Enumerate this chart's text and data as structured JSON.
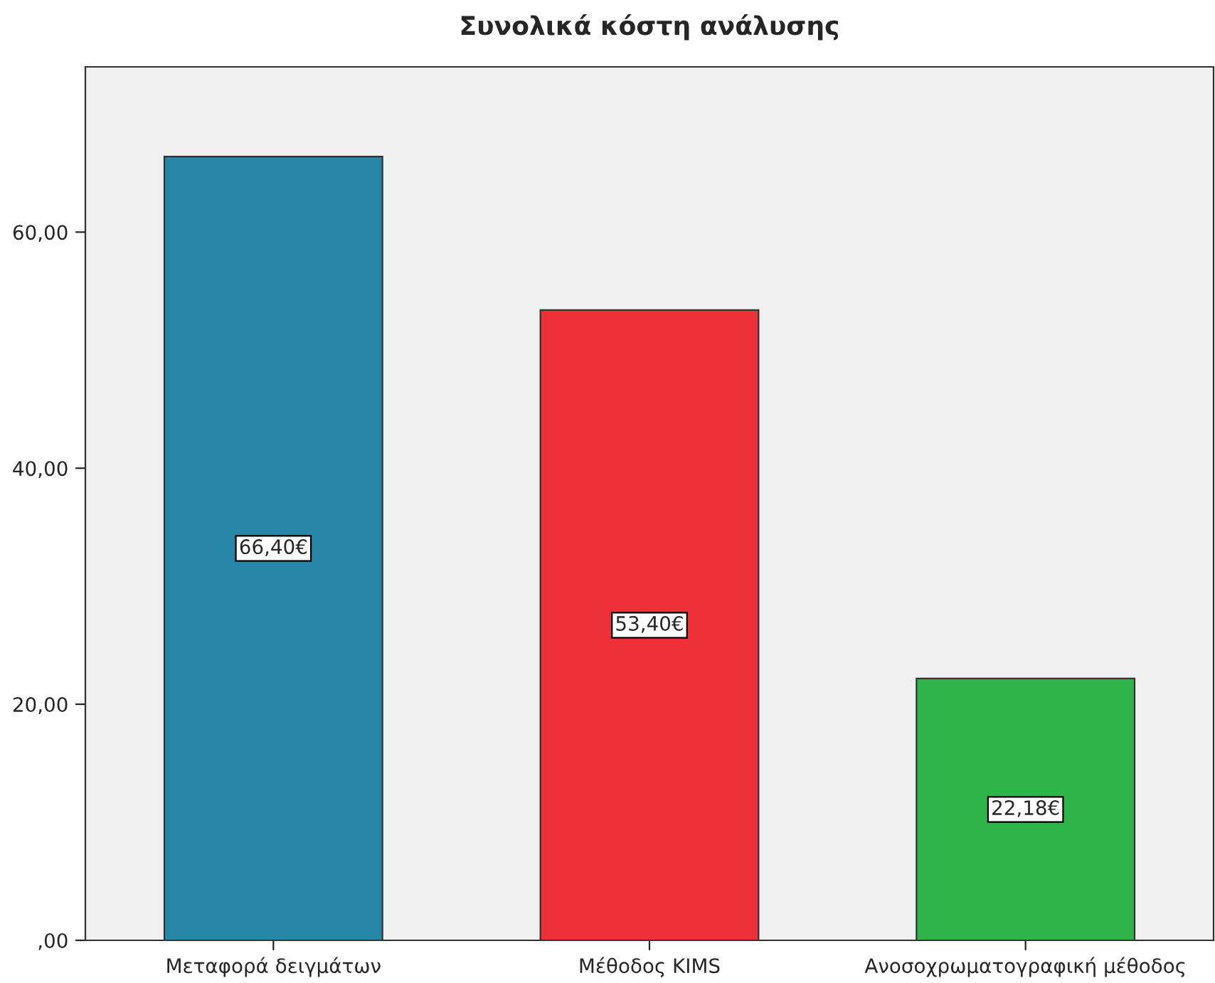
{
  "chart_data": {
    "type": "bar",
    "title": "Συνολικά κόστη ανάλυσης",
    "categories": [
      "Μεταφορά δειγμάτων",
      "Μέθοδος KIMS",
      "Ανοσοχρωματογραφική μέθοδος"
    ],
    "values": [
      66.4,
      53.4,
      22.18
    ],
    "colors": [
      "#2787a8",
      "#ee3039",
      "#2fb44a"
    ],
    "value_labels": [
      "66,40€",
      "53,40€",
      "22,18€"
    ],
    "ylim": [
      0,
      74
    ],
    "yticks": [
      {
        "value": 0,
        "label": ",00"
      },
      {
        "value": 20,
        "label": "20,00"
      },
      {
        "value": 40,
        "label": "40,00"
      },
      {
        "value": 60,
        "label": "60,00"
      }
    ],
    "grid": false,
    "legend": false
  }
}
